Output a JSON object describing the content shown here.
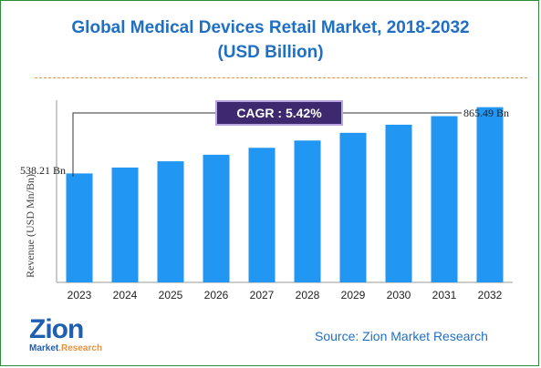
{
  "title_line1": "Global Medical Devices Retail Market, 2018-2032",
  "title_line2": "(USD Billion)",
  "cagr_text": "CAGR : 5.42%",
  "source_text": "Source: Zion Market Research",
  "logo": {
    "main": "Zion",
    "sub_left": "Market",
    "sub_right": ".Research"
  },
  "colors": {
    "bar": "#2196f3",
    "title": "#1f6fc4",
    "cagr_bg": "#3d2a6e",
    "divider": "#e8923a"
  },
  "chart_data": {
    "type": "bar",
    "title": "Global Medical Devices Retail Market, 2018-2032 (USD Billion)",
    "ylabel": "Revenue (USD Mn/Bn)",
    "xlabel": "",
    "categories": [
      "2023",
      "2024",
      "2025",
      "2026",
      "2027",
      "2028",
      "2029",
      "2030",
      "2031",
      "2032"
    ],
    "values": [
      538.21,
      567.4,
      598.2,
      630.6,
      664.8,
      700.8,
      738.8,
      778.9,
      821.1,
      865.49
    ],
    "data_labels": {
      "first": "538.21 Bn",
      "last": "865.49 Bn"
    },
    "ylim": [
      0,
      900
    ],
    "grid": false,
    "legend": "none"
  }
}
